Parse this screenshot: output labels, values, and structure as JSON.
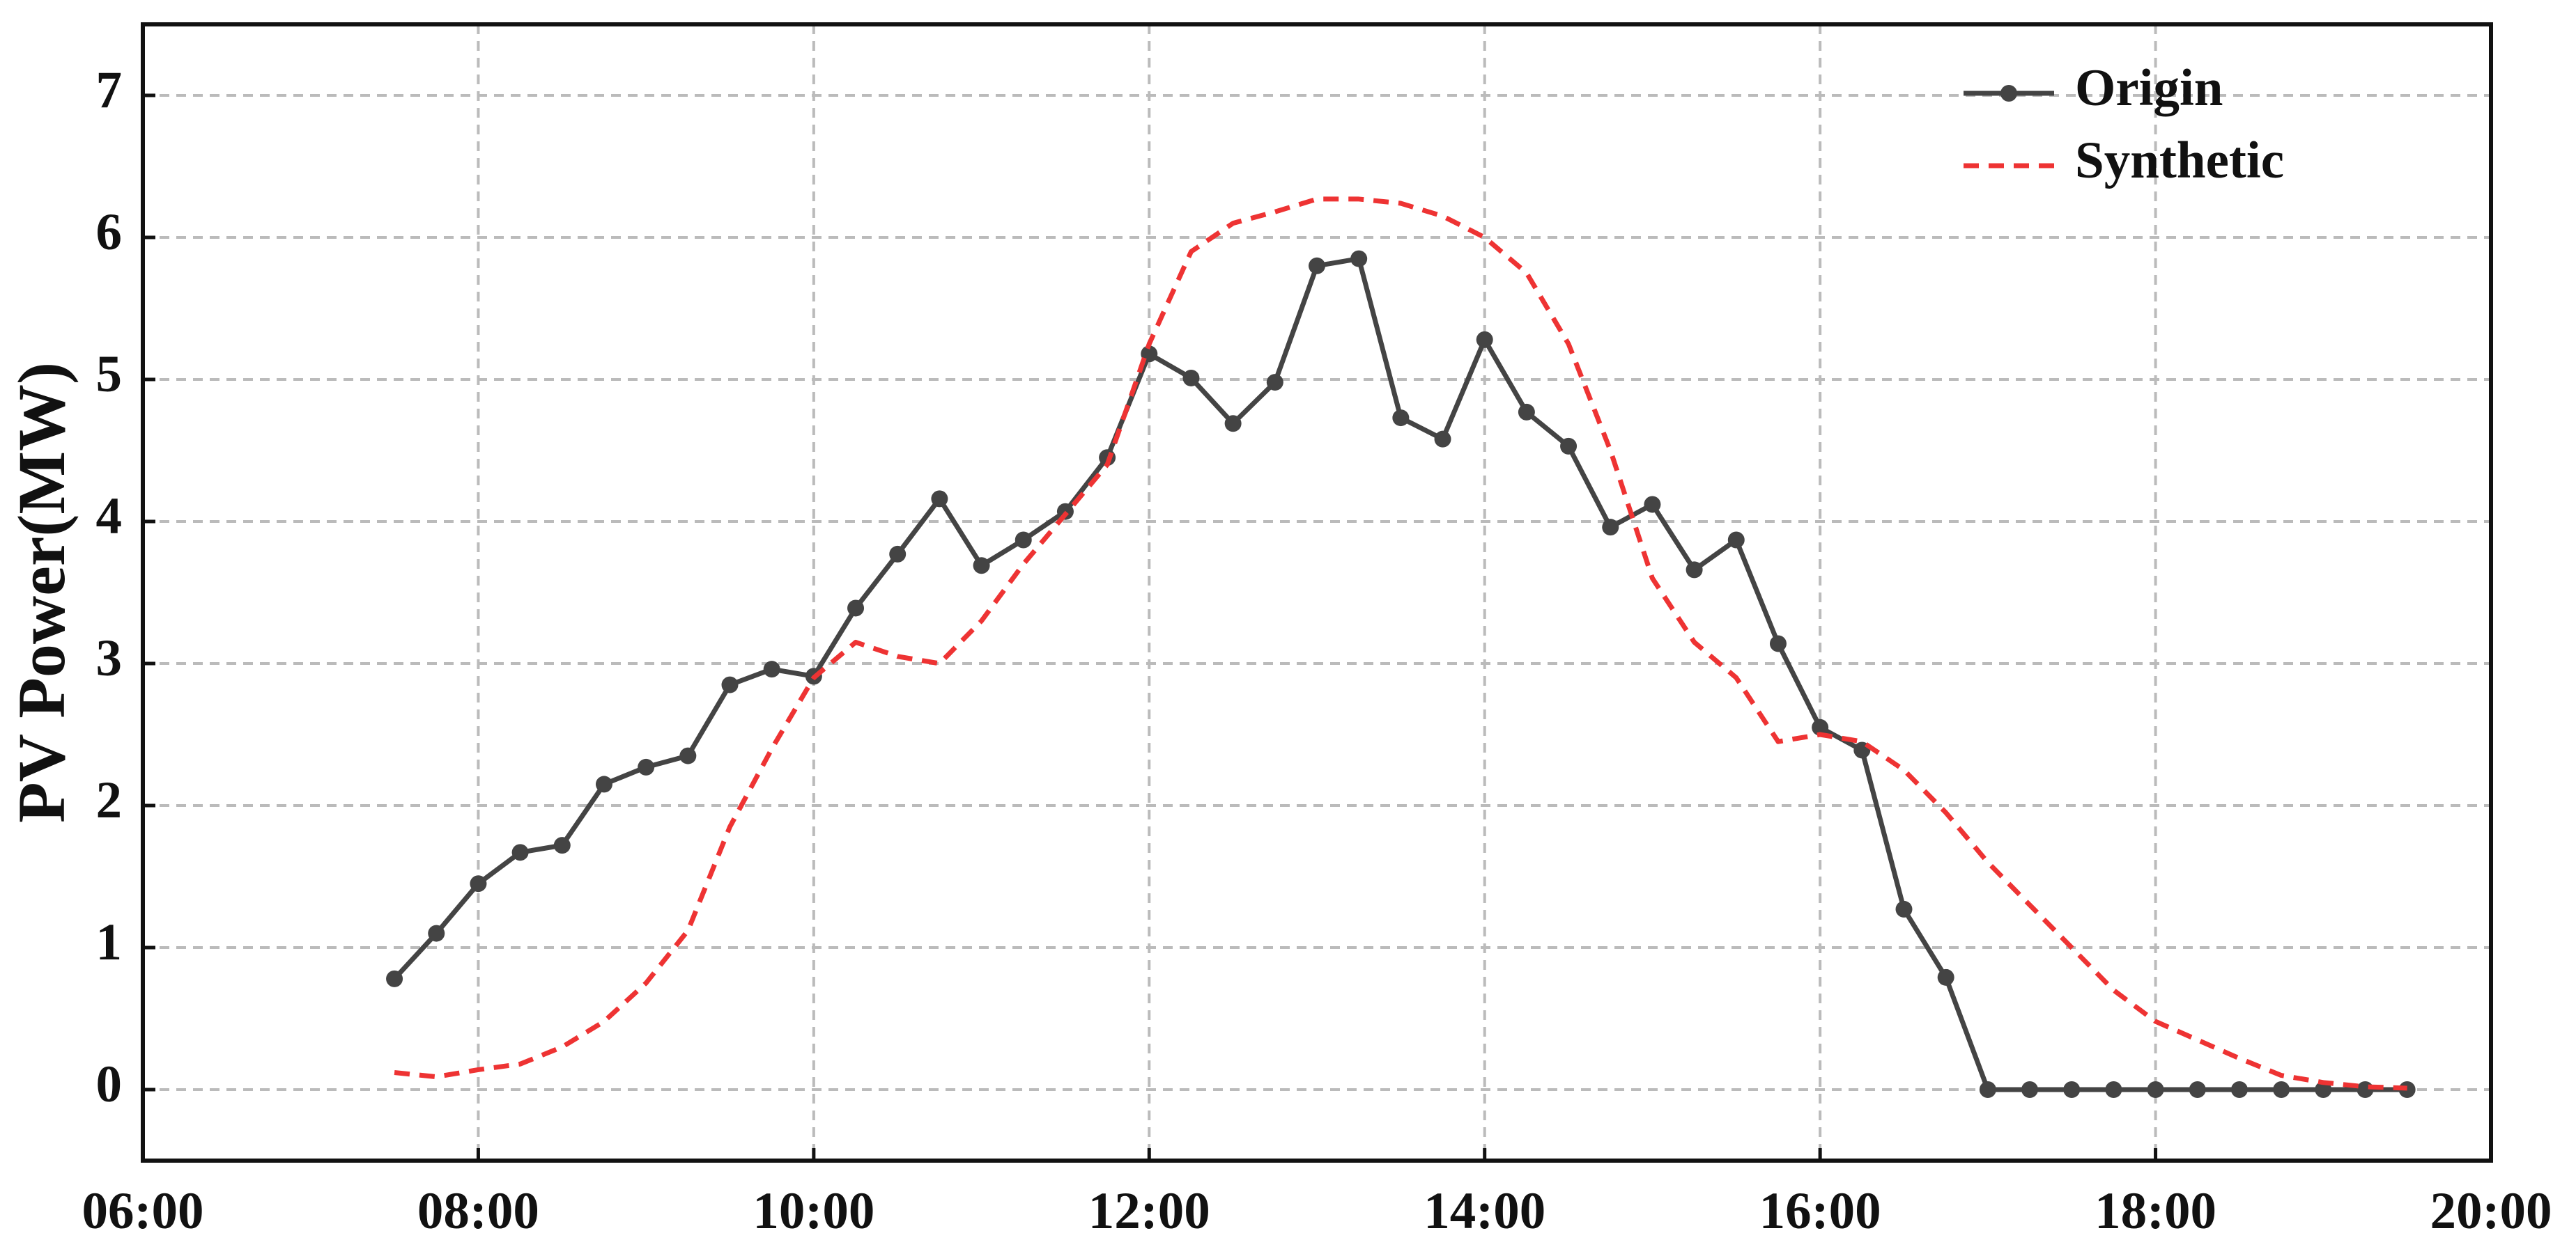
{
  "chart_data": {
    "type": "line",
    "y_label": "PV Power(MW)",
    "x": [
      "07:30",
      "07:45",
      "08:00",
      "08:15",
      "08:30",
      "08:45",
      "09:00",
      "09:15",
      "09:30",
      "09:45",
      "10:00",
      "10:15",
      "10:30",
      "10:45",
      "11:00",
      "11:15",
      "11:30",
      "11:45",
      "12:00",
      "12:15",
      "12:30",
      "12:45",
      "13:00",
      "13:15",
      "13:30",
      "13:45",
      "14:00",
      "14:15",
      "14:30",
      "14:45",
      "15:00",
      "15:15",
      "15:30",
      "15:45",
      "16:00",
      "16:15",
      "16:30",
      "16:45",
      "17:00",
      "17:15",
      "17:30",
      "17:45",
      "18:00",
      "18:15",
      "18:30",
      "18:45",
      "19:00",
      "19:15",
      "19:30"
    ],
    "series": [
      {
        "name": "Origin",
        "color": "#444444",
        "style": "solid",
        "markers": true,
        "values": [
          0.78,
          1.1,
          1.45,
          1.67,
          1.72,
          2.15,
          2.27,
          2.35,
          2.85,
          2.96,
          2.91,
          3.39,
          3.77,
          4.16,
          3.69,
          3.87,
          4.07,
          4.45,
          5.18,
          5.01,
          4.69,
          4.98,
          5.8,
          5.85,
          4.73,
          4.58,
          5.28,
          4.77,
          4.53,
          3.96,
          4.12,
          3.66,
          3.87,
          3.14,
          2.55,
          2.39,
          1.27,
          0.79,
          0,
          0,
          0,
          0,
          0,
          0,
          0,
          0,
          0,
          0,
          0
        ]
      },
      {
        "name": "Synthetic",
        "color": "#ee3333",
        "style": "dashed",
        "markers": false,
        "values": [
          0.12,
          0.09,
          0.14,
          0.18,
          0.3,
          0.48,
          0.75,
          1.12,
          1.85,
          2.4,
          2.9,
          3.15,
          3.05,
          3.0,
          3.3,
          3.7,
          4.05,
          4.4,
          5.25,
          5.9,
          6.1,
          6.18,
          6.27,
          6.27,
          6.24,
          6.15,
          6.0,
          5.75,
          5.25,
          4.5,
          3.6,
          3.15,
          2.9,
          2.45,
          2.5,
          2.45,
          2.25,
          1.95,
          1.6,
          1.3,
          1.0,
          0.7,
          0.48,
          0.35,
          0.22,
          0.1,
          0.05,
          0.02,
          0.01
        ]
      }
    ],
    "xlim": [
      "06:00",
      "20:00"
    ],
    "xticks": [
      "06:00",
      "08:00",
      "10:00",
      "12:00",
      "14:00",
      "16:00",
      "18:00",
      "20:00"
    ],
    "ylim": [
      -0.5,
      7.5
    ],
    "yticks": [
      0,
      1,
      2,
      3,
      4,
      5,
      6,
      7
    ],
    "grid": true,
    "legend": "upper-right"
  }
}
